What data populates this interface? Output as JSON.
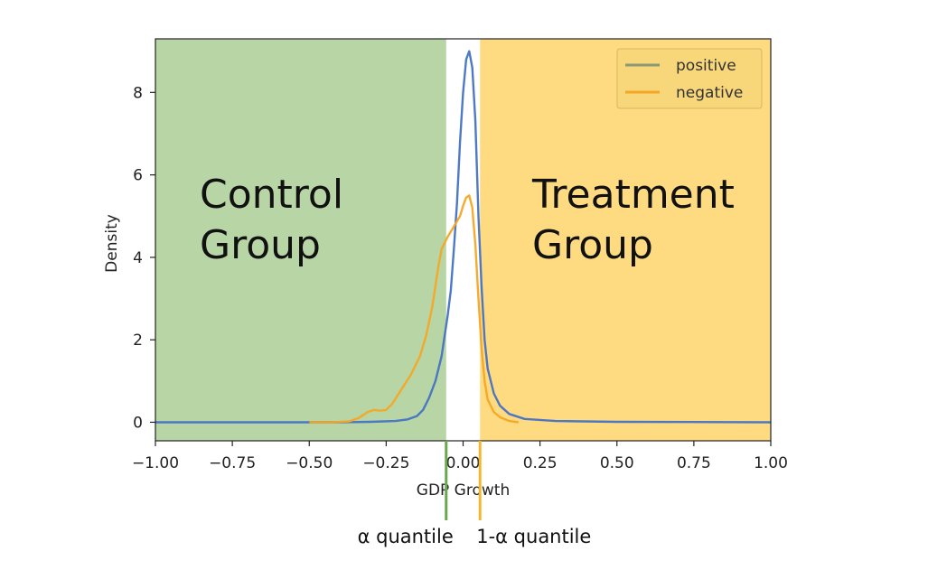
{
  "chart_data": {
    "type": "line",
    "xlabel": "GDP Growth",
    "ylabel": "Density",
    "xlim": [
      -1.0,
      1.0
    ],
    "ylim": [
      -0.45,
      9.3
    ],
    "x_ticks": [
      -1.0,
      -0.75,
      -0.5,
      -0.25,
      0.0,
      0.25,
      0.5,
      0.75,
      1.0
    ],
    "x_tick_labels": [
      "−1.00",
      "−0.75",
      "−0.50",
      "−0.25",
      "0.00",
      "0.25",
      "0.50",
      "0.75",
      "1.00"
    ],
    "y_ticks": [
      0,
      2,
      4,
      6,
      8
    ],
    "y_tick_labels": [
      "0",
      "2",
      "4",
      "6",
      "8"
    ],
    "grid": false,
    "legend_position": "top-right",
    "series": [
      {
        "name": "positive",
        "color": "#4472c4",
        "points": [
          [
            -1.0,
            0.0
          ],
          [
            -0.6,
            0.0
          ],
          [
            -0.4,
            0.0
          ],
          [
            -0.3,
            0.01
          ],
          [
            -0.22,
            0.03
          ],
          [
            -0.18,
            0.07
          ],
          [
            -0.15,
            0.15
          ],
          [
            -0.13,
            0.3
          ],
          [
            -0.11,
            0.6
          ],
          [
            -0.09,
            1.0
          ],
          [
            -0.07,
            1.6
          ],
          [
            -0.05,
            2.6
          ],
          [
            -0.04,
            3.2
          ],
          [
            -0.03,
            4.2
          ],
          [
            -0.02,
            5.3
          ],
          [
            -0.01,
            6.8
          ],
          [
            0.0,
            8.0
          ],
          [
            0.01,
            8.8
          ],
          [
            0.02,
            9.0
          ],
          [
            0.03,
            8.6
          ],
          [
            0.04,
            7.3
          ],
          [
            0.05,
            5.0
          ],
          [
            0.06,
            3.3
          ],
          [
            0.07,
            2.0
          ],
          [
            0.08,
            1.3
          ],
          [
            0.1,
            0.7
          ],
          [
            0.12,
            0.4
          ],
          [
            0.15,
            0.2
          ],
          [
            0.2,
            0.08
          ],
          [
            0.3,
            0.03
          ],
          [
            0.5,
            0.01
          ],
          [
            1.0,
            0.0
          ]
        ]
      },
      {
        "name": "negative",
        "color": "#f5a623",
        "points": [
          [
            -0.5,
            0.0
          ],
          [
            -0.42,
            0.0
          ],
          [
            -0.37,
            0.02
          ],
          [
            -0.34,
            0.1
          ],
          [
            -0.31,
            0.25
          ],
          [
            -0.29,
            0.3
          ],
          [
            -0.27,
            0.28
          ],
          [
            -0.25,
            0.3
          ],
          [
            -0.23,
            0.45
          ],
          [
            -0.2,
            0.8
          ],
          [
            -0.17,
            1.15
          ],
          [
            -0.14,
            1.6
          ],
          [
            -0.12,
            2.1
          ],
          [
            -0.1,
            2.8
          ],
          [
            -0.08,
            3.8
          ],
          [
            -0.07,
            4.2
          ],
          [
            -0.05,
            4.5
          ],
          [
            -0.03,
            4.75
          ],
          [
            -0.01,
            5.0
          ],
          [
            0.0,
            5.25
          ],
          [
            0.01,
            5.45
          ],
          [
            0.02,
            5.5
          ],
          [
            0.03,
            5.2
          ],
          [
            0.04,
            4.3
          ],
          [
            0.05,
            3.0
          ],
          [
            0.06,
            1.8
          ],
          [
            0.07,
            1.0
          ],
          [
            0.08,
            0.55
          ],
          [
            0.1,
            0.25
          ],
          [
            0.12,
            0.12
          ],
          [
            0.15,
            0.03
          ],
          [
            0.18,
            0.0
          ]
        ]
      }
    ],
    "regions": [
      {
        "label": "Control Group",
        "lines": [
          "Control",
          "Group"
        ],
        "x_range": [
          -1.0,
          -0.055
        ],
        "color": "#b8d5a6"
      },
      {
        "label": "Treatment Group",
        "lines": [
          "Treatment",
          "Group"
        ],
        "x_range": [
          0.055,
          1.0
        ],
        "color": "#fedb81"
      }
    ],
    "quantile_markers": [
      {
        "label": "α quantile",
        "x": -0.055,
        "color": "#6aa84f"
      },
      {
        "label": "1-α quantile",
        "x": 0.055,
        "color": "#f1b82d"
      }
    ]
  }
}
